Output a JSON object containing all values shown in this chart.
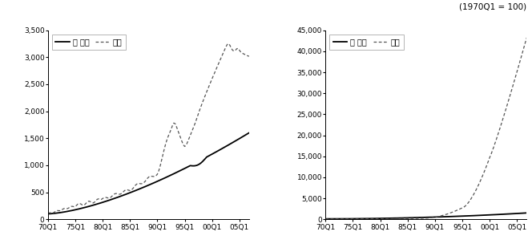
{
  "title_text": "(1970Q1 = 100)",
  "left_panel": {
    "legend_labels": [
      "전 부문",
      "방송"
    ],
    "yticks": [
      0,
      500,
      1000,
      1500,
      2000,
      2500,
      3000,
      3500
    ],
    "xtick_labels": [
      "70Q1",
      "75Q1",
      "80Q1",
      "85Q1",
      "90Q1",
      "95Q1",
      "00Q1",
      "05Q1"
    ]
  },
  "right_panel": {
    "legend_labels": [
      "전 부문",
      "통신"
    ],
    "yticks": [
      0,
      5000,
      10000,
      15000,
      20000,
      25000,
      30000,
      35000,
      40000,
      45000
    ],
    "xtick_labels": [
      "70Q1",
      "75Q1",
      "80Q1",
      "85Q1",
      "90Q1",
      "95Q1",
      "00Q1",
      "05Q1"
    ]
  },
  "line_color_solid": "#000000",
  "line_color_dashed": "#555555",
  "bg_color": "#ffffff",
  "n_quarters": 148
}
